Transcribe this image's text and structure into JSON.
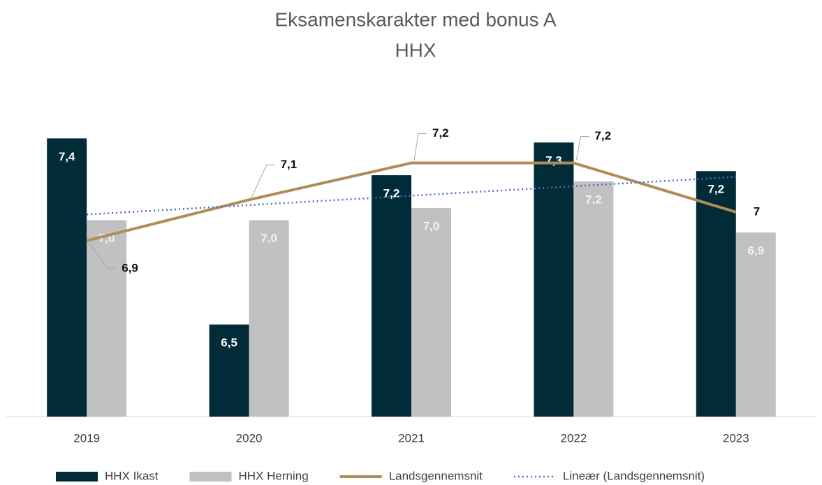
{
  "chart_data": {
    "type": "bar_line",
    "title": "Eksamenskarakter med bonus A",
    "subtitle": "HHX",
    "categories": [
      "2019",
      "2020",
      "2021",
      "2022",
      "2023"
    ],
    "ylim": [
      6.0,
      7.6
    ],
    "series": [
      {
        "name": "HHX Ikast",
        "type": "bar",
        "color": "#012b36",
        "values": [
          7.36,
          6.45,
          7.18,
          7.34,
          7.2
        ],
        "value_labels": [
          "7,4",
          "6,5",
          "7,2",
          "7,3",
          "7,2"
        ]
      },
      {
        "name": "HHX Herning",
        "type": "bar",
        "color": "#c1c1c1",
        "values": [
          6.96,
          6.96,
          7.02,
          7.15,
          6.9
        ],
        "value_labels": [
          "7,0",
          "7,0",
          "7,0",
          "7,2",
          "6,9"
        ]
      },
      {
        "name": "Landsgennemsnit",
        "type": "line",
        "color": "#b08d57",
        "values": [
          6.86,
          7.06,
          7.24,
          7.24,
          7.0
        ],
        "value_labels": [
          "6,9",
          "7,1",
          "7,2",
          "7,2",
          "7"
        ]
      }
    ],
    "trendline": {
      "name": "Lineær (Landsgennemsnit)",
      "color": "#4472c4"
    }
  }
}
